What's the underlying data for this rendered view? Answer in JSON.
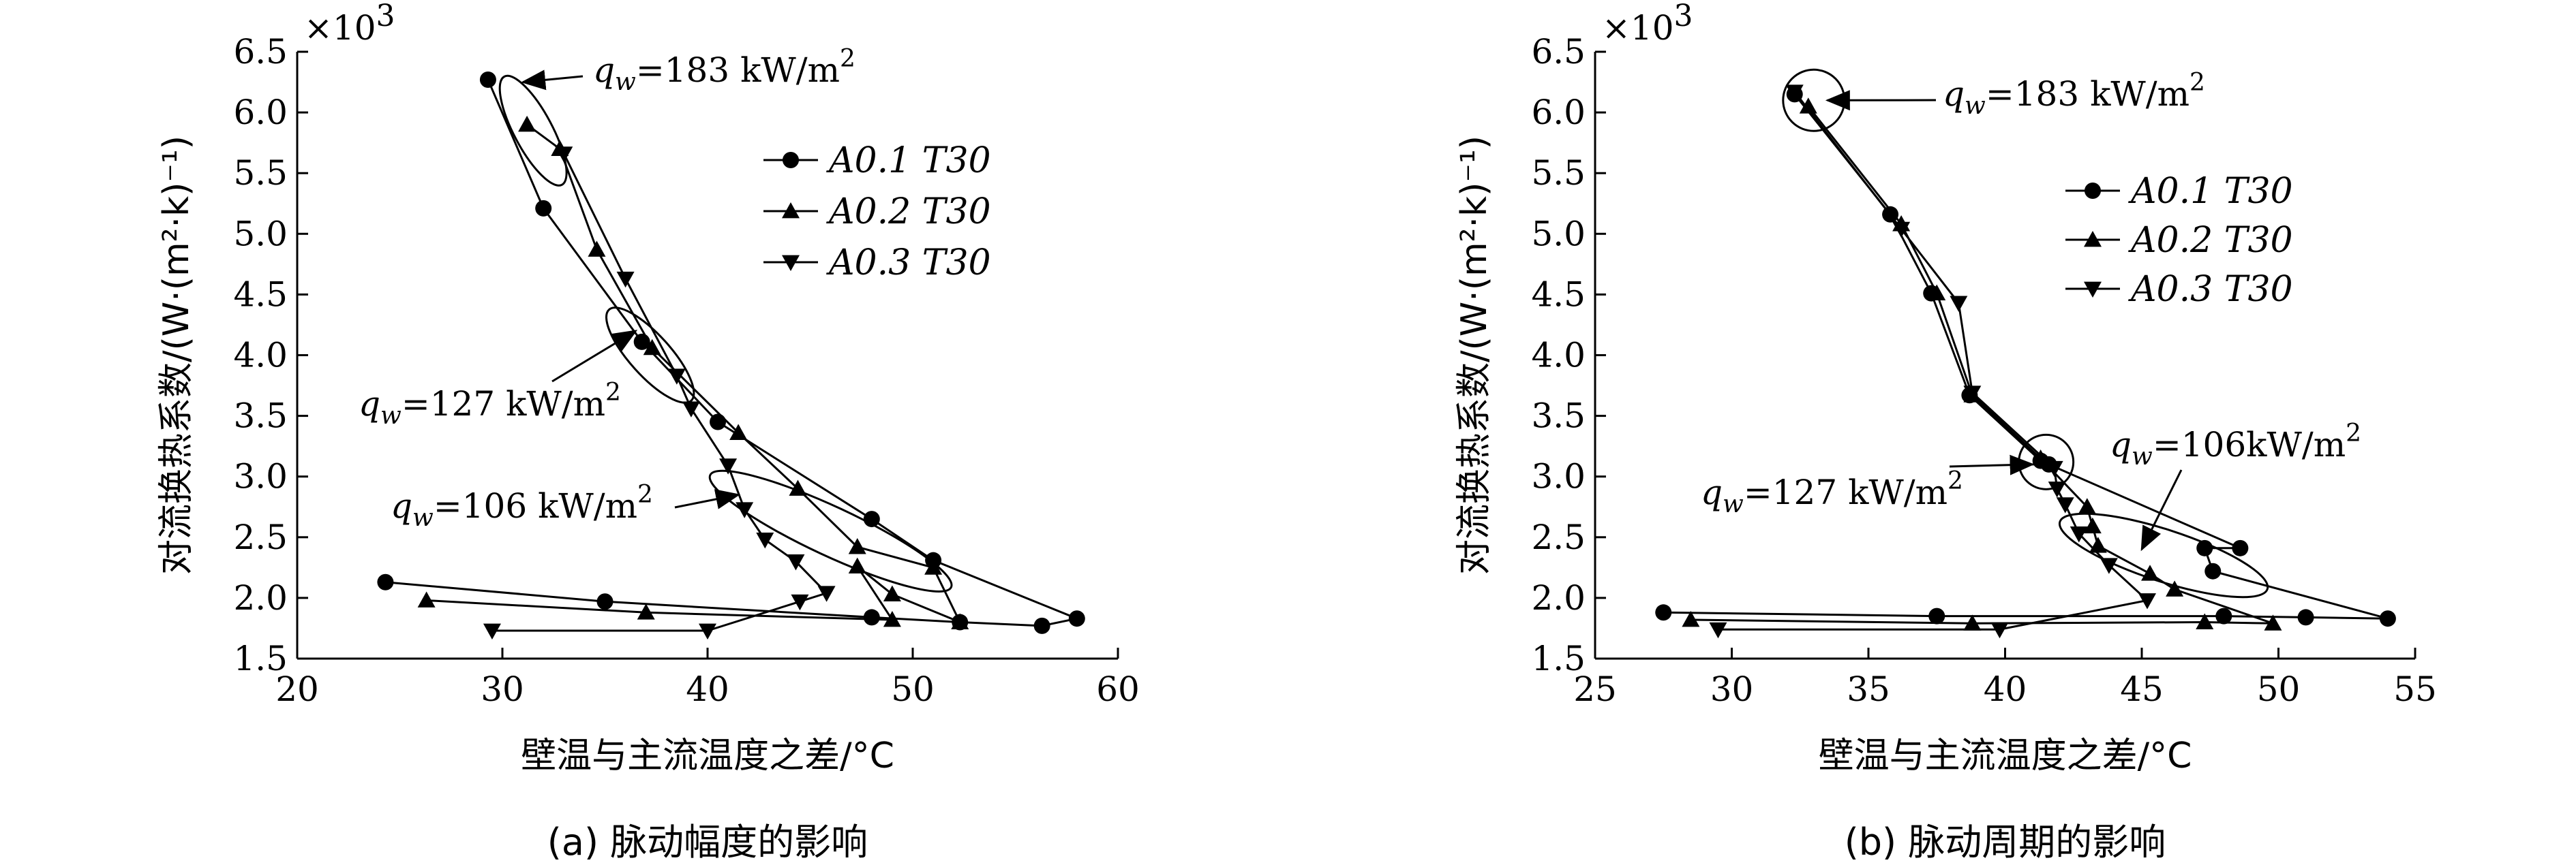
{
  "chart_data": [
    {
      "type": "line",
      "caption": "(a) 脉动幅度的影响",
      "xlabel": "壁温与主流温度之差/°C",
      "ylabel": "对流换热系数/(W·(m²·k)⁻¹)",
      "y_multiplier": "×10³",
      "xlim": [
        20,
        60
      ],
      "ylim": [
        1.5,
        6.5
      ],
      "x_ticks": [
        20,
        30,
        40,
        50,
        60
      ],
      "y_ticks": [
        1.5,
        2.0,
        2.5,
        3.0,
        3.5,
        4.0,
        4.5,
        5.0,
        5.5,
        6.0,
        6.5
      ],
      "grid": false,
      "legend_position": "top-right",
      "series": [
        {
          "name": "A0.1 T30",
          "marker": "circle",
          "points": [
            [
              29.3,
              6.27
            ],
            [
              32.0,
              5.21
            ],
            [
              36.8,
              4.11
            ],
            [
              40.5,
              3.45
            ],
            [
              48.0,
              2.65
            ],
            [
              51.0,
              2.31
            ],
            [
              58.0,
              1.83
            ],
            [
              56.3,
              1.77
            ],
            [
              52.3,
              1.8
            ],
            [
              48.0,
              1.84
            ],
            [
              35.0,
              1.97
            ],
            [
              24.3,
              2.13
            ]
          ]
        },
        {
          "name": "A0.2 T30",
          "marker": "triangle-up",
          "points": [
            [
              31.2,
              5.9
            ],
            [
              32.8,
              5.7
            ],
            [
              34.6,
              4.87
            ],
            [
              37.3,
              4.06
            ],
            [
              41.5,
              3.36
            ],
            [
              44.4,
              2.9
            ],
            [
              47.3,
              2.42
            ],
            [
              51.0,
              2.25
            ],
            [
              52.3,
              1.8
            ],
            [
              49.0,
              2.03
            ],
            [
              47.3,
              2.26
            ],
            [
              49.0,
              1.82
            ],
            [
              37.0,
              1.88
            ],
            [
              26.3,
              1.98
            ]
          ]
        },
        {
          "name": "A0.3 T30",
          "marker": "triangle-down",
          "points": [
            [
              33.0,
              5.66
            ],
            [
              36.0,
              4.63
            ],
            [
              38.5,
              3.83
            ],
            [
              39.2,
              3.56
            ],
            [
              41.0,
              3.09
            ],
            [
              41.8,
              2.73
            ],
            [
              42.8,
              2.48
            ],
            [
              44.3,
              2.3
            ],
            [
              45.8,
              2.04
            ],
            [
              44.5,
              1.97
            ],
            [
              40.0,
              1.73
            ],
            [
              29.5,
              1.73
            ]
          ]
        }
      ],
      "annotations": [
        {
          "text": "=183 kW/m²",
          "symbol": "q",
          "subscript": "w",
          "points_to": [
            31.0,
            6.25
          ]
        },
        {
          "text": "=127 kW/m²",
          "symbol": "q",
          "subscript": "w",
          "points_to": [
            36.5,
            4.2
          ]
        },
        {
          "text": "=106 kW/m²",
          "symbol": "q",
          "subscript": "w",
          "points_to": [
            41.5,
            2.85
          ]
        }
      ]
    },
    {
      "type": "line",
      "caption": "(b) 脉动周期的影响",
      "xlabel": "壁温与主流温度之差/°C",
      "ylabel": "对流换热系数/(W·(m²·k)⁻¹)",
      "y_multiplier": "×10³",
      "xlim": [
        25,
        55
      ],
      "ylim": [
        1.5,
        6.5
      ],
      "x_ticks": [
        25,
        30,
        35,
        40,
        45,
        50,
        55
      ],
      "y_ticks": [
        1.5,
        2.0,
        2.5,
        3.0,
        3.5,
        4.0,
        4.5,
        5.0,
        5.5,
        6.0,
        6.5
      ],
      "grid": false,
      "legend_position": "right",
      "series": [
        {
          "name": "A0.1 T30",
          "marker": "circle",
          "points": [
            [
              32.3,
              6.15
            ],
            [
              35.8,
              5.16
            ],
            [
              37.3,
              4.51
            ],
            [
              38.7,
              3.67
            ],
            [
              41.3,
              3.13
            ],
            [
              41.6,
              3.1
            ],
            [
              48.6,
              2.41
            ],
            [
              47.3,
              2.41
            ],
            [
              47.6,
              2.22
            ],
            [
              54.0,
              1.83
            ],
            [
              51.0,
              1.84
            ],
            [
              48.0,
              1.85
            ],
            [
              37.5,
              1.85
            ],
            [
              27.5,
              1.88
            ]
          ]
        },
        {
          "name": "A0.2 T30",
          "marker": "triangle-up",
          "points": [
            [
              32.8,
              6.05
            ],
            [
              36.2,
              5.08
            ],
            [
              37.5,
              4.51
            ],
            [
              38.8,
              3.67
            ],
            [
              41.3,
              3.15
            ],
            [
              43.0,
              2.75
            ],
            [
              43.2,
              2.59
            ],
            [
              43.4,
              2.43
            ],
            [
              45.3,
              2.2
            ],
            [
              46.2,
              2.07
            ],
            [
              49.8,
              1.79
            ],
            [
              47.3,
              1.8
            ],
            [
              38.8,
              1.79
            ],
            [
              28.5,
              1.82
            ]
          ]
        },
        {
          "name": "A0.3 T30",
          "marker": "triangle-down",
          "points": [
            [
              32.3,
              6.17
            ],
            [
              36.2,
              5.04
            ],
            [
              38.3,
              4.43
            ],
            [
              38.8,
              3.69
            ],
            [
              41.8,
              3.07
            ],
            [
              41.9,
              2.9
            ],
            [
              42.2,
              2.77
            ],
            [
              42.7,
              2.53
            ],
            [
              43.8,
              2.27
            ],
            [
              45.2,
              1.98
            ],
            [
              39.8,
              1.74
            ],
            [
              29.5,
              1.74
            ]
          ]
        }
      ],
      "annotations": [
        {
          "text": "=183 kW/m²",
          "symbol": "q",
          "subscript": "w",
          "points_to": [
            33.5,
            6.1
          ]
        },
        {
          "text": "=127 kW/m²",
          "symbol": "q",
          "subscript": "w",
          "points_to": [
            41.0,
            3.1
          ]
        },
        {
          "text": "=106kW/m²",
          "symbol": "q",
          "subscript": "w",
          "points_to": [
            45.0,
            2.4
          ]
        }
      ]
    }
  ]
}
